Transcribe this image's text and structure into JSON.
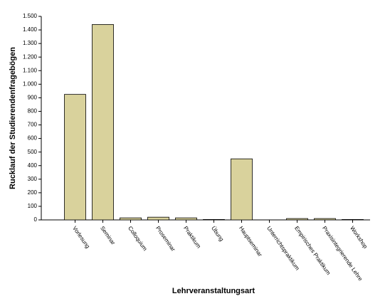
{
  "chart_data": {
    "type": "bar",
    "y_label": "Rucklauf der Studierendenfragebögen",
    "x_label": "Lehrveranstaltungsart",
    "categories": [
      "Vorlesung",
      "Seminar",
      "Colloquium",
      "Proseminar",
      "Praktikum",
      "Übung",
      "Hauptseminar",
      "Unterrichtspraktikum",
      "Empirisches Praktikum",
      "Praxisintegrierende Lehre",
      "Workshop"
    ],
    "values": [
      925,
      1440,
      15,
      20,
      15,
      3,
      450,
      0,
      10,
      10,
      3
    ],
    "color": "#d9d29c",
    "ylim": [
      0,
      1500
    ],
    "yticks": [
      0,
      100,
      200,
      300,
      400,
      500,
      600,
      700,
      800,
      900,
      {
        "value": 1000,
        "label": "1.000"
      },
      {
        "value": 1100,
        "label": "1.100"
      },
      {
        "value": 1200,
        "label": "1.200"
      },
      {
        "value": 1300,
        "label": "1.300"
      },
      {
        "value": 1400,
        "label": "1.400"
      },
      {
        "value": 1500,
        "label": "1.500"
      }
    ]
  }
}
